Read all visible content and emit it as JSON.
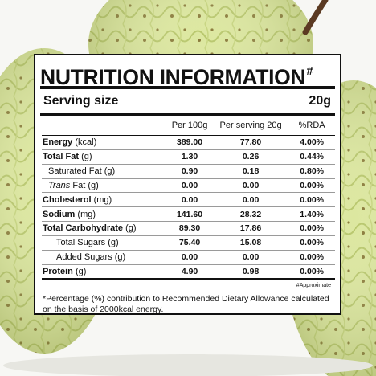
{
  "panel": {
    "title": "NUTRITION INFORMATION",
    "title_mark": "#",
    "serving_label": "Serving size",
    "serving_value": "20g",
    "columns": [
      "",
      "Per 100g",
      "Per serving 20g",
      "%RDA"
    ],
    "rows": [
      {
        "name": "Energy",
        "unit": " (kcal)",
        "per100": "389.00",
        "perServing": "77.80",
        "rda": "4.00%"
      },
      {
        "name": "Total Fat",
        "unit": " (g)",
        "per100": "1.30",
        "perServing": "0.26",
        "rda": "0.44%"
      },
      {
        "name": "Saturated Fat (g)",
        "unit": "",
        "per100": "0.90",
        "perServing": "0.18",
        "rda": "0.80%"
      },
      {
        "name": "Trans",
        "unit": " Fat (g)",
        "per100": "0.00",
        "perServing": "0.00",
        "rda": "0.00%"
      },
      {
        "name": "Cholesterol",
        "unit": " (mg)",
        "per100": "0.00",
        "perServing": "0.00",
        "rda": "0.00%"
      },
      {
        "name": "Sodium",
        "unit": " (mg)",
        "per100": "141.60",
        "perServing": "28.32",
        "rda": "1.40%"
      },
      {
        "name": "Total Carbohydrate",
        "unit": " (g)",
        "per100": "89.30",
        "perServing": "17.86",
        "rda": "0.00%"
      },
      {
        "name": "Total Sugars (g)",
        "unit": "",
        "per100": "75.40",
        "perServing": "15.08",
        "rda": "0.00%"
      },
      {
        "name": "Added Sugars (g)",
        "unit": "",
        "per100": "0.00",
        "perServing": "0.00",
        "rda": "0.00%"
      },
      {
        "name": "Protein",
        "unit": " (g)",
        "per100": "4.90",
        "perServing": "0.98",
        "rda": "0.00%"
      }
    ],
    "approx_note": "#Approximate",
    "footnote": "*Percentage (%) contribution to Recommended Dietary Allowance calculated on the basis of 2000kcal energy."
  },
  "colors": {
    "fruit": "#d7e39a",
    "fruit_dark": "#b7c86a",
    "stem": "#5b3a22",
    "ink": "#111111"
  }
}
